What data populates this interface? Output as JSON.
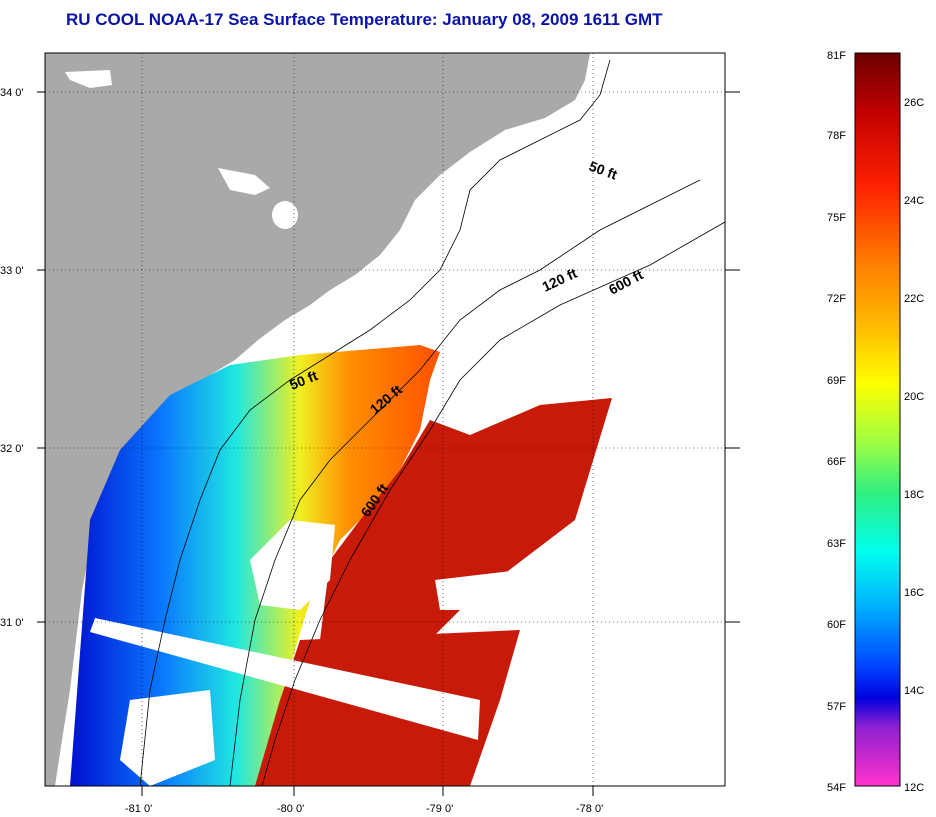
{
  "title": "RU COOL  NOAA-17  Sea Surface Temperature:  January 08, 2009 1611 GMT",
  "lat_labels": [
    "34 0'",
    "33 0'",
    "32 0'",
    "31 0'"
  ],
  "lon_labels": [
    "-81 0'",
    "-80 0'",
    "-79 0'",
    "-78 0'"
  ],
  "contours": {
    "upper": [
      "50 ft",
      "120 ft",
      "600 ft"
    ],
    "lower": [
      "50 ft",
      "120 ft",
      "600 ft"
    ]
  },
  "colorbar": {
    "fahrenheit": [
      "81F",
      "78F",
      "75F",
      "72F",
      "69F",
      "66F",
      "63F",
      "60F",
      "57F",
      "54F"
    ],
    "celsius": [
      "26C",
      "24C",
      "22C",
      "20C",
      "18C",
      "16C",
      "14C",
      "12C"
    ],
    "colors": [
      "#7a0000",
      "#cc0000",
      "#ff3300",
      "#ff8800",
      "#ffcc00",
      "#ffff00",
      "#bfff33",
      "#33ee77",
      "#00ffee",
      "#00aaff",
      "#0044ff",
      "#0000cc",
      "#9900cc",
      "#ff33cc"
    ]
  },
  "colors": {
    "land": "#a9a9a9",
    "ocean_no_data": "#ffffff",
    "title": "#0a14a8"
  }
}
